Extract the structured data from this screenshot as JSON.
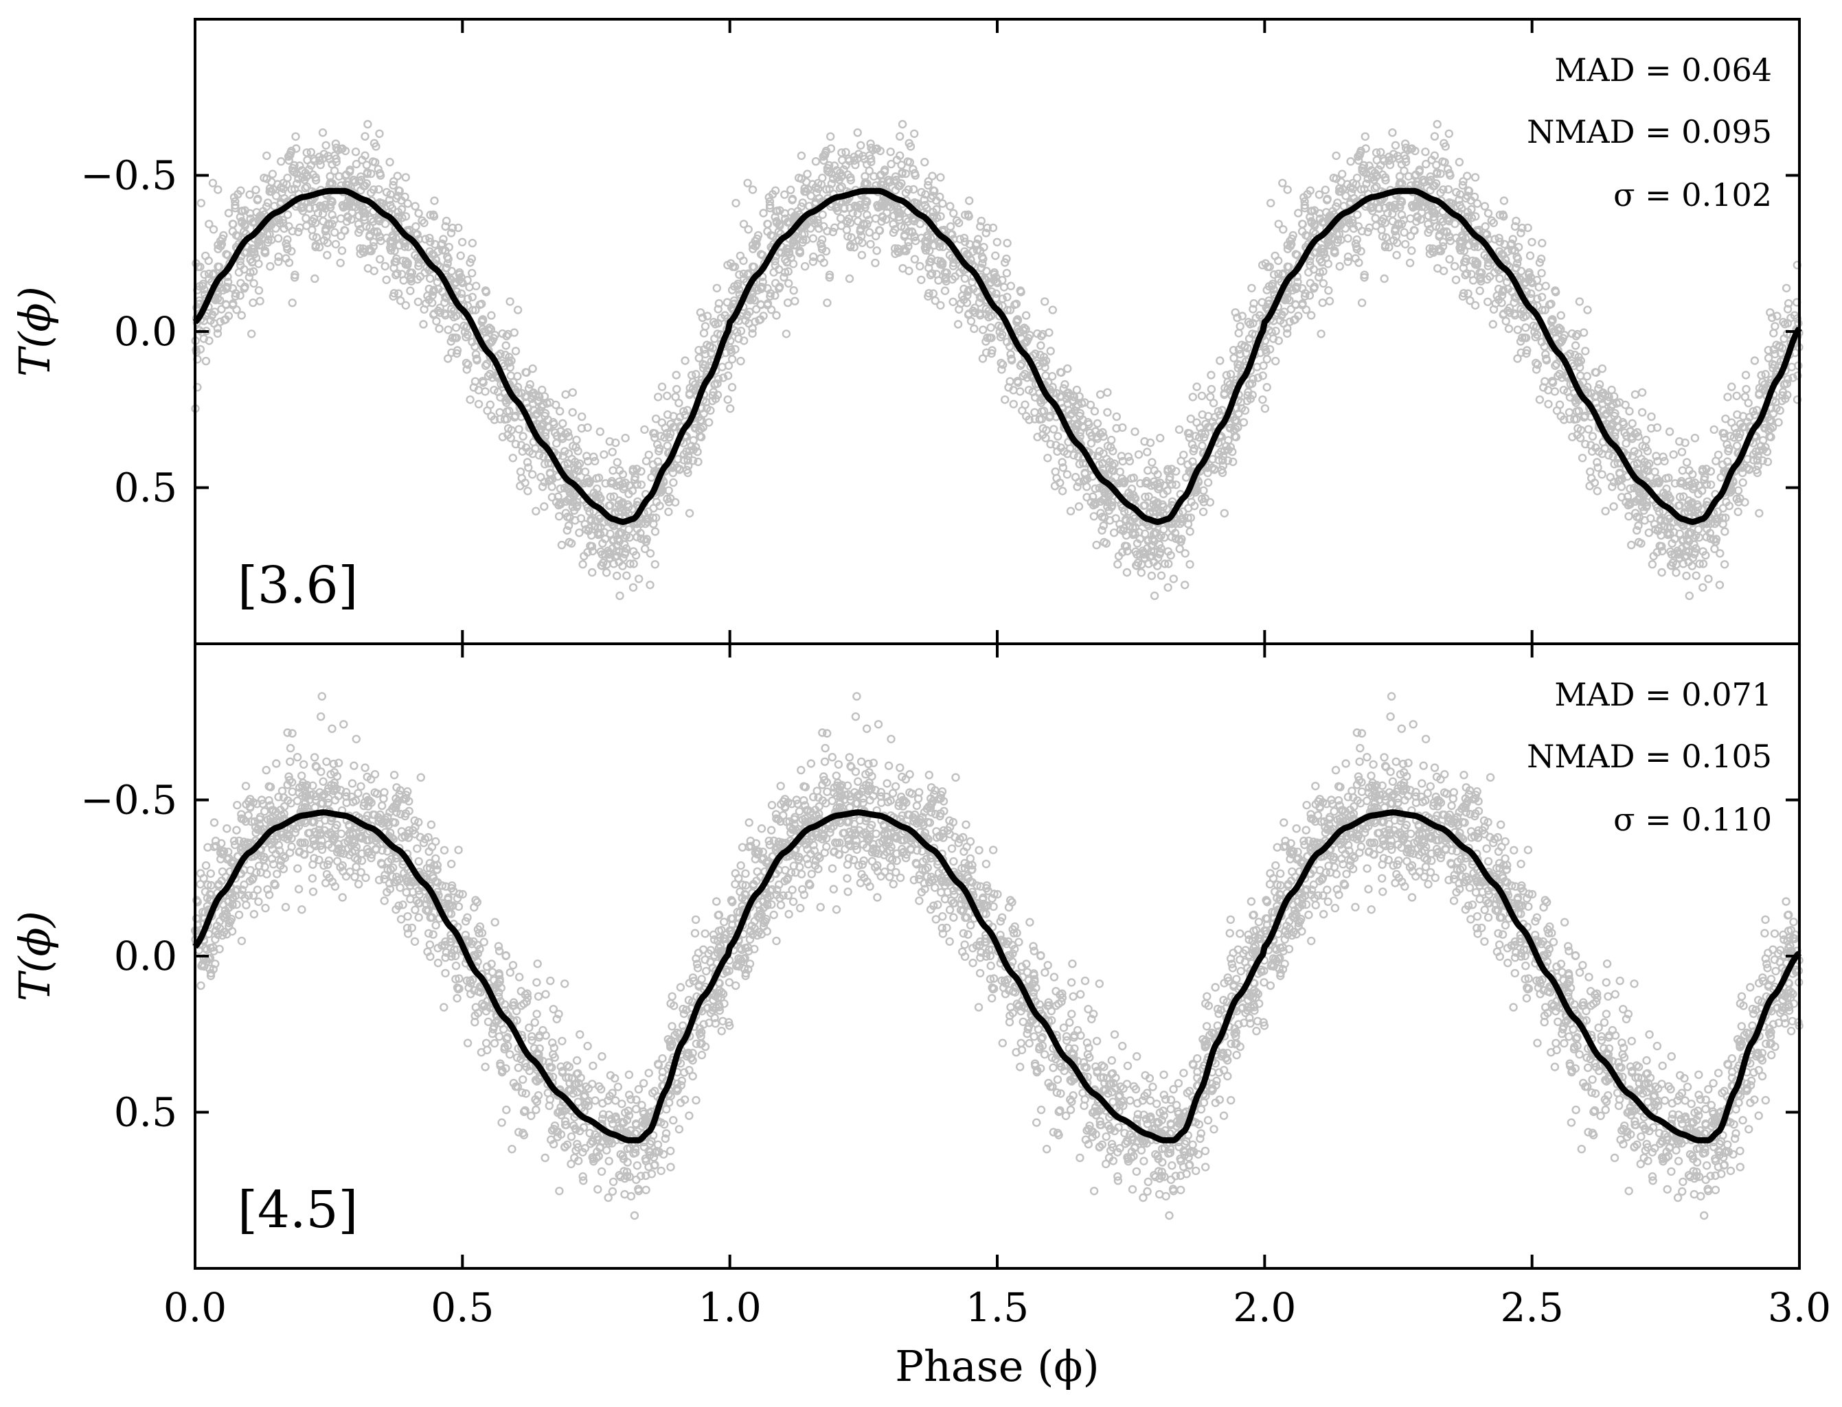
{
  "chart_data": {
    "type": "scatter",
    "xlabel": "Phase (ϕ)",
    "xlim": [
      0.0,
      3.0
    ],
    "xticks": [
      0.0,
      0.5,
      1.0,
      1.5,
      2.0,
      2.5,
      3.0
    ],
    "xtick_labels": [
      "0.0",
      "0.5",
      "1.0",
      "1.5",
      "2.0",
      "2.5",
      "3.0"
    ],
    "colors": {
      "scatter": "#c0c0c0",
      "template": "#000000",
      "frame": "#000000"
    },
    "panels": [
      {
        "label": "[3.6]",
        "ylabel": "T(ϕ)",
        "ylim_inverted": [
          1.0,
          -1.0
        ],
        "yticks": [
          -0.5,
          0.0,
          0.5
        ],
        "ytick_labels": [
          "−0.5",
          "0.0",
          "0.5"
        ],
        "stats": [
          "MAD = 0.064",
          "NMAD = 0.095",
          "σ = 0.102"
        ],
        "period_repeats": 3,
        "template_one_period": {
          "phase": [
            0.0,
            0.05,
            0.1,
            0.15,
            0.2,
            0.25,
            0.28,
            0.32,
            0.36,
            0.4,
            0.45,
            0.5,
            0.55,
            0.6,
            0.65,
            0.7,
            0.75,
            0.78,
            0.8,
            0.82,
            0.85,
            0.88,
            0.92,
            0.96,
            1.0
          ],
          "value": [
            -0.03,
            -0.18,
            -0.3,
            -0.38,
            -0.43,
            -0.45,
            -0.45,
            -0.42,
            -0.37,
            -0.3,
            -0.2,
            -0.07,
            0.07,
            0.22,
            0.36,
            0.48,
            0.56,
            0.6,
            0.61,
            0.6,
            0.53,
            0.43,
            0.3,
            0.15,
            -0.01
          ]
        },
        "scatter_scale": 0.102
      },
      {
        "label": "[4.5]",
        "ylabel": "T(ϕ)",
        "ylim_inverted": [
          1.0,
          -1.0
        ],
        "yticks": [
          -0.5,
          0.0,
          0.5
        ],
        "ytick_labels": [
          "−0.5",
          "0.0",
          "0.5"
        ],
        "stats": [
          "MAD = 0.071",
          "NMAD = 0.105",
          "σ = 0.110"
        ],
        "period_repeats": 3,
        "template_one_period": {
          "phase": [
            0.0,
            0.05,
            0.1,
            0.15,
            0.2,
            0.24,
            0.28,
            0.33,
            0.38,
            0.43,
            0.48,
            0.53,
            0.58,
            0.63,
            0.68,
            0.73,
            0.78,
            0.81,
            0.83,
            0.85,
            0.88,
            0.91,
            0.95,
            1.0
          ],
          "value": [
            -0.03,
            -0.2,
            -0.33,
            -0.41,
            -0.45,
            -0.46,
            -0.45,
            -0.41,
            -0.34,
            -0.23,
            -0.09,
            0.06,
            0.2,
            0.33,
            0.44,
            0.52,
            0.57,
            0.59,
            0.59,
            0.56,
            0.43,
            0.28,
            0.13,
            -0.01
          ]
        },
        "scatter_scale": 0.11
      }
    ]
  }
}
